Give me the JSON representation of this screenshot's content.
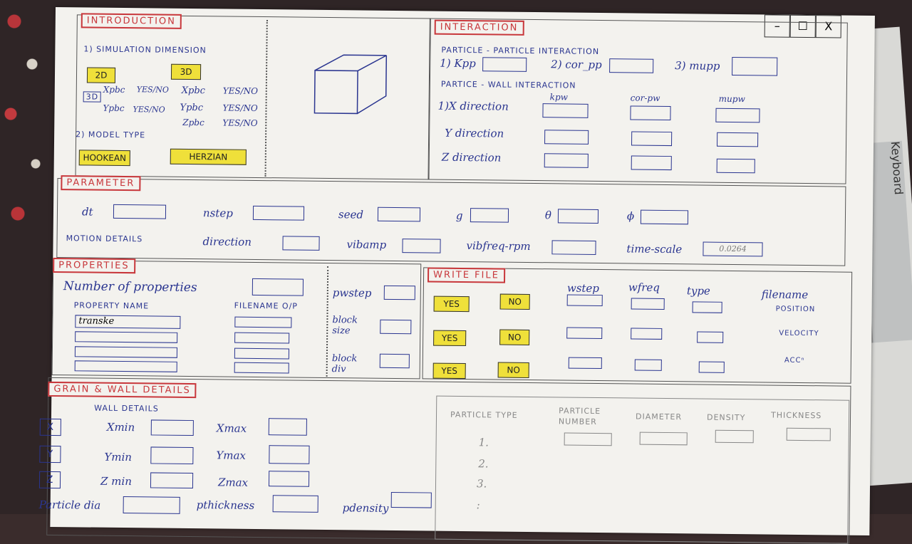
{
  "window": {
    "minimize": "–",
    "maximize": "☐",
    "close": "X"
  },
  "introduction": {
    "title": "INTRODUCTION",
    "sim_dim": "1) SIMULATION DIMENSION",
    "btn_2d": "2D",
    "btn_3d": "3D",
    "btn_3d_small": "3D",
    "xpbc_2d": "Xpbc",
    "ypbc_2d": "Ypbc",
    "yesno1": "YES/NO",
    "yesno2": "YES/NO",
    "xpbc_3d": "Xpbc",
    "ypbc_3d": "Ypbc",
    "zpbc_3d": "Zpbc",
    "yesno3": "YES/NO",
    "yesno4": "YES/NO",
    "yesno5": "YES/NO",
    "model_type": "2) MODEL TYPE",
    "hookean": "HOOKEAN",
    "herzian": "HERZIAN"
  },
  "interaction": {
    "title": "INTERACTION",
    "pp_title": "PARTICLE - PARTICLE INTERACTION",
    "kpp": "1) Kpp",
    "corpp": "2) cor_pp",
    "mupp": "3) mupp",
    "pw_title": "PARTICE - WALL INTERACTION",
    "kpw": "kpw",
    "corpw": "cor-pw",
    "mupw": "mupw",
    "xdir": "1)X direction",
    "ydir": "Y direction",
    "zdir": "Z direction"
  },
  "parameter": {
    "title": "PARAMETER",
    "dt": "dt",
    "nstep": "nstep",
    "seed": "seed",
    "g": "g",
    "theta": "θ",
    "phi": "ϕ",
    "motion": "MOTION DETAILS",
    "direction": "direction",
    "vibamp": "vibamp",
    "vibfreq": "vibfreq-rpm",
    "timescale": "time-scale",
    "timescale_value": "0.0264"
  },
  "properties": {
    "title": "PROPERTIES",
    "num_props": "Number of properties",
    "prop_name": "PROPERTY NAME",
    "filename_op": "FILENAME O/P",
    "prop_value": "transke",
    "pwstep": "pwstep",
    "block_size": "block size",
    "block_div": "block div"
  },
  "write_file": {
    "title": "WRITE FILE",
    "yes": "YES",
    "no": "NO",
    "wstep": "wstep",
    "wfreq": "wfreq",
    "type": "type",
    "filename": "filename",
    "position": "POSITION",
    "velocity": "VELOCITY",
    "acc": "ACCⁿ"
  },
  "grain": {
    "title": "GRAIN & WALL DETAILS",
    "wall_details": "WALL DETAILS",
    "x": "X",
    "y": "Y",
    "z": "Z",
    "xmin": "Xmin",
    "xmax": "Xmax",
    "ymin": "Ymin",
    "ymax": "Ymax",
    "zmin": "Z min",
    "zmax": "Zmax",
    "pdia": "Particle dia",
    "pthick": "pthickness",
    "pdens": "pdensity",
    "particle_type": "PARTICLE TYPE",
    "particle_number": "PARTICLE NUMBER",
    "diameter": "DIAMETER",
    "density": "DENSITY",
    "thickness": "THICKNESS",
    "row1": "1.",
    "row2": "2.",
    "row3": "3.",
    "row4": ":"
  },
  "background": {
    "keyboard_label": "Keyboard"
  }
}
